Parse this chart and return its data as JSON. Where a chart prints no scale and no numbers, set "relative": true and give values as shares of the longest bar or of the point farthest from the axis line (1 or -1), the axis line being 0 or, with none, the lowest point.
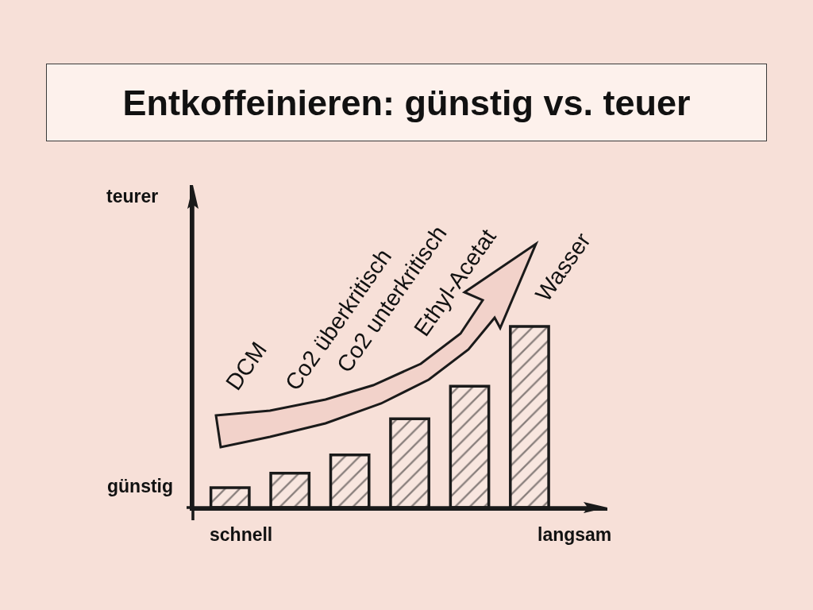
{
  "chart_data": {
    "type": "bar",
    "title": "Entkoffeinieren: günstig vs. teuer",
    "categories": [
      null,
      null,
      null,
      null,
      null,
      null
    ],
    "values": [
      0.11,
      0.19,
      0.29,
      0.49,
      0.67,
      1.0
    ],
    "relative": true,
    "color": "#1a1a1a",
    "annotations": [
      "teurer",
      "günstig",
      "schnell",
      "langsam",
      "DCM",
      "Co2 überkritisch",
      "Co2 unterkritisch",
      "Ethyl-Acetat",
      "Wasser"
    ]
  }
}
